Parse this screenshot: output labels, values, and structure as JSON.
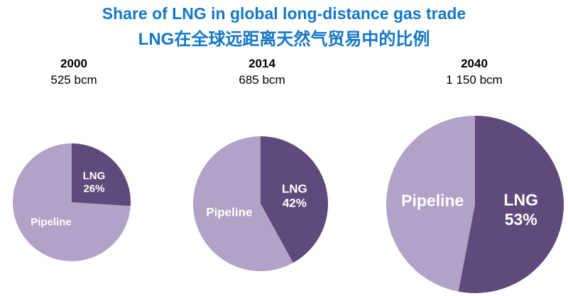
{
  "title": {
    "line1": "Share of LNG in global long-distance gas trade",
    "line2": "LNG在全球远距离天然气贸易中的比例",
    "color": "#1577c8"
  },
  "colors": {
    "lng_slice": "#604a7b",
    "pipeline_slice": "#b3a2c7",
    "slice_label_text": "#ffffff"
  },
  "chart_data": [
    {
      "type": "pie",
      "year": "2000",
      "volume": "525 bcm",
      "start_angle_deg": 0,
      "direction": "clockwise",
      "slices": [
        {
          "label": "LNG",
          "pct": 26,
          "pct_shown": true
        },
        {
          "label": "Pipeline",
          "pct": 74,
          "pct_shown": false
        }
      ]
    },
    {
      "type": "pie",
      "year": "2014",
      "volume": "685 bcm",
      "start_angle_deg": 0,
      "direction": "clockwise",
      "slices": [
        {
          "label": "LNG",
          "pct": 42,
          "pct_shown": true
        },
        {
          "label": "Pipeline",
          "pct": 58,
          "pct_shown": false
        }
      ]
    },
    {
      "type": "pie",
      "year": "2040",
      "volume": "1 150 bcm",
      "start_angle_deg": 0,
      "direction": "clockwise",
      "slices": [
        {
          "label": "LNG",
          "pct": 53,
          "pct_shown": true
        },
        {
          "label": "Pipeline",
          "pct": 47,
          "pct_shown": false
        }
      ]
    }
  ],
  "layout_hints": {
    "pies_sized_by": "volume",
    "legend": "none",
    "labels": "inside slices"
  }
}
